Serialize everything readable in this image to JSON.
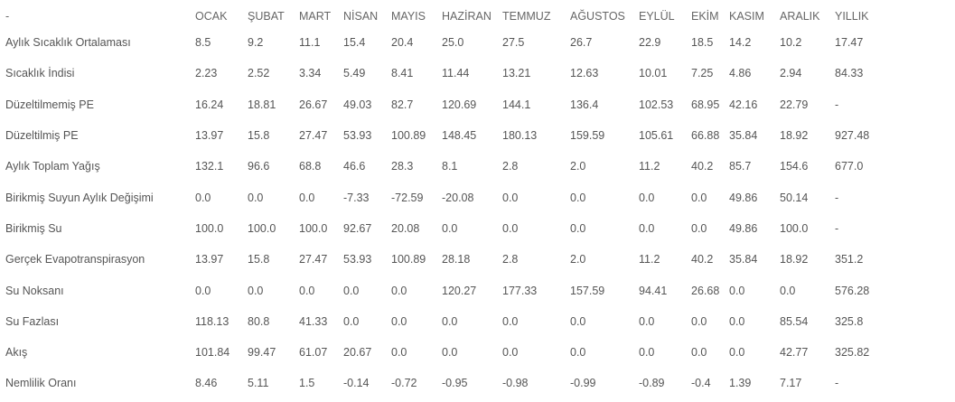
{
  "table": {
    "columns": [
      "-",
      "OCAK",
      "ŞUBAT",
      "MART",
      "NİSAN",
      "MAYIS",
      "HAZİRAN",
      "TEMMUZ",
      "AĞUSTOS",
      "EYLÜL",
      "EKİM",
      "KASIM",
      "ARALIK",
      "YILLIK"
    ],
    "rows": [
      {
        "label": "Aylık Sıcaklık Ortalaması",
        "values": [
          "8.5",
          "9.2",
          "11.1",
          "15.4",
          "20.4",
          "25.0",
          "27.5",
          "26.7",
          "22.9",
          "18.5",
          "14.2",
          "10.2",
          "17.47"
        ]
      },
      {
        "label": "Sıcaklık İndisi",
        "values": [
          "2.23",
          "2.52",
          "3.34",
          "5.49",
          "8.41",
          "11.44",
          "13.21",
          "12.63",
          "10.01",
          "7.25",
          "4.86",
          "2.94",
          "84.33"
        ]
      },
      {
        "label": "Düzeltilmemiş PE",
        "values": [
          "16.24",
          "18.81",
          "26.67",
          "49.03",
          "82.7",
          "120.69",
          "144.1",
          "136.4",
          "102.53",
          "68.95",
          "42.16",
          "22.79",
          "-"
        ]
      },
      {
        "label": "Düzeltilmiş PE",
        "values": [
          "13.97",
          "15.8",
          "27.47",
          "53.93",
          "100.89",
          "148.45",
          "180.13",
          "159.59",
          "105.61",
          "66.88",
          "35.84",
          "18.92",
          "927.48"
        ]
      },
      {
        "label": "Aylık Toplam Yağış",
        "values": [
          "132.1",
          "96.6",
          "68.8",
          "46.6",
          "28.3",
          "8.1",
          "2.8",
          "2.0",
          "11.2",
          "40.2",
          "85.7",
          "154.6",
          "677.0"
        ]
      },
      {
        "label": "Birikmiş Suyun Aylık Değişimi",
        "values": [
          "0.0",
          "0.0",
          "0.0",
          "-7.33",
          "-72.59",
          "-20.08",
          "0.0",
          "0.0",
          "0.0",
          "0.0",
          "49.86",
          "50.14",
          "-"
        ]
      },
      {
        "label": "Birikmiş Su",
        "values": [
          "100.0",
          "100.0",
          "100.0",
          "92.67",
          "20.08",
          "0.0",
          "0.0",
          "0.0",
          "0.0",
          "0.0",
          "49.86",
          "100.0",
          "-"
        ]
      },
      {
        "label": "Gerçek Evapotranspirasyon",
        "values": [
          "13.97",
          "15.8",
          "27.47",
          "53.93",
          "100.89",
          "28.18",
          "2.8",
          "2.0",
          "11.2",
          "40.2",
          "35.84",
          "18.92",
          "351.2"
        ]
      },
      {
        "label": "Su Noksanı",
        "values": [
          "0.0",
          "0.0",
          "0.0",
          "0.0",
          "0.0",
          "120.27",
          "177.33",
          "157.59",
          "94.41",
          "26.68",
          "0.0",
          "0.0",
          "576.28"
        ]
      },
      {
        "label": "Su Fazlası",
        "values": [
          "118.13",
          "80.8",
          "41.33",
          "0.0",
          "0.0",
          "0.0",
          "0.0",
          "0.0",
          "0.0",
          "0.0",
          "0.0",
          "85.54",
          "325.8"
        ]
      },
      {
        "label": "Akış",
        "values": [
          "101.84",
          "99.47",
          "61.07",
          "20.67",
          "0.0",
          "0.0",
          "0.0",
          "0.0",
          "0.0",
          "0.0",
          "0.0",
          "42.77",
          "325.82"
        ]
      },
      {
        "label": "Nemlilik Oranı",
        "values": [
          "8.46",
          "5.11",
          "1.5",
          "-0.14",
          "-0.72",
          "-0.95",
          "-0.98",
          "-0.99",
          "-0.89",
          "-0.4",
          "1.39",
          "7.17",
          "-"
        ]
      }
    ]
  }
}
